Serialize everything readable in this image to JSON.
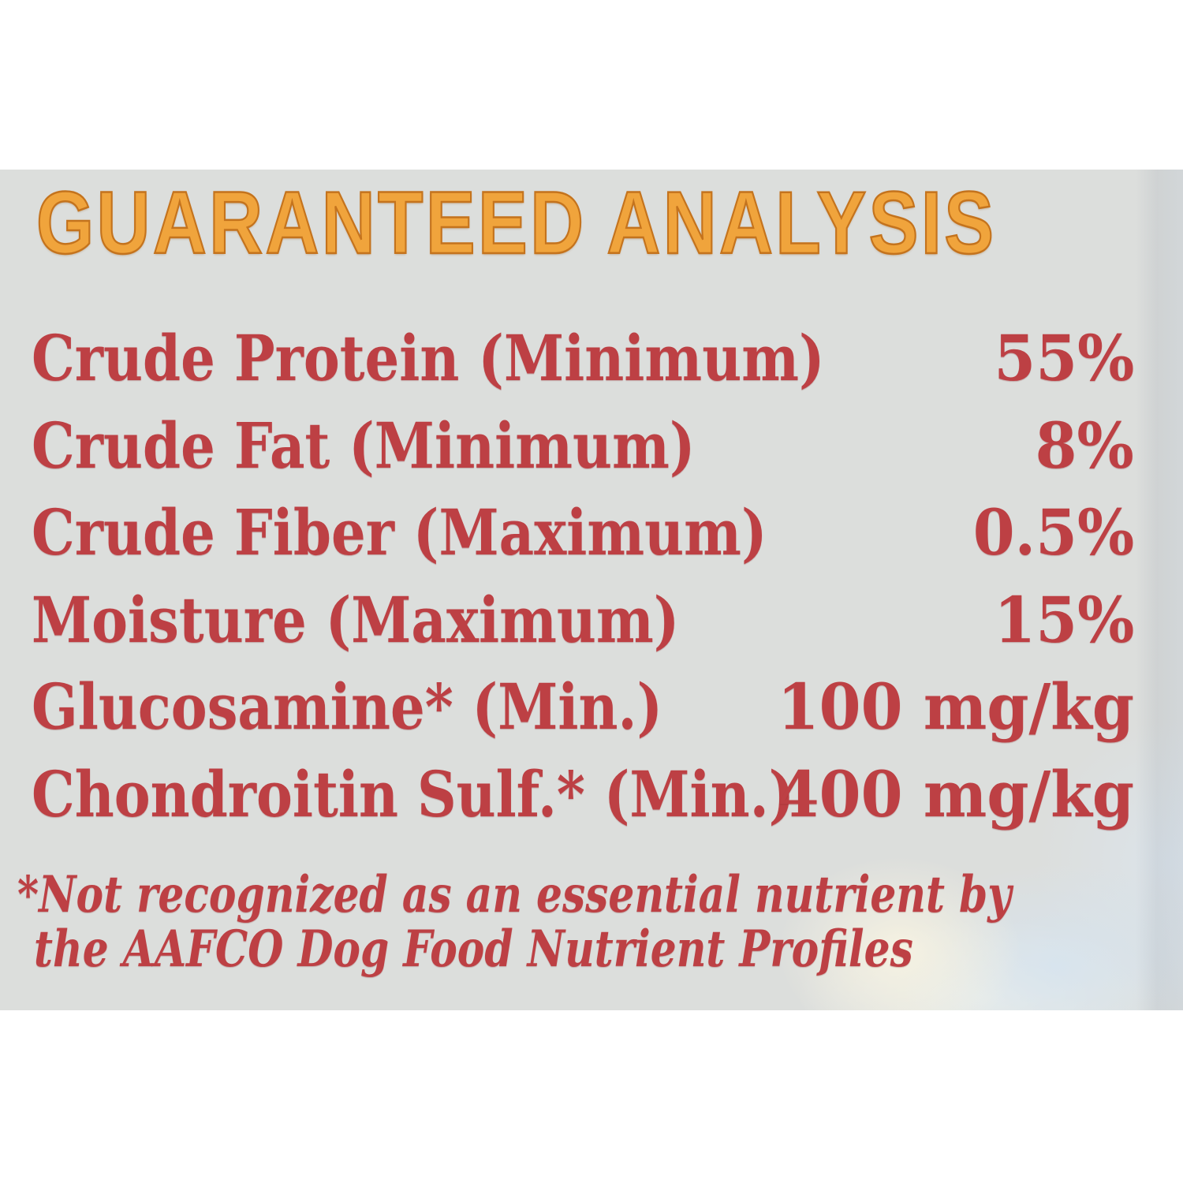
{
  "colors": {
    "page-bg": "#ffffff",
    "label-bg": "#dcdedc",
    "text-red": "#bd4044",
    "title-orange": "#f0a43c",
    "title-orange-edge": "#c4731d"
  },
  "label": {
    "title": "GUARANTEED ANALYSIS",
    "rows": [
      {
        "name": "Crude Protein (Minimum)",
        "value": "55%"
      },
      {
        "name": "Crude Fat (Minimum)",
        "value": "8%"
      },
      {
        "name": "Crude Fiber (Maximum)",
        "value": "0.5%"
      },
      {
        "name": "Moisture (Maximum)",
        "value": "15%"
      },
      {
        "name": "Glucosamine* (Min.)",
        "value": "100 mg/kg"
      },
      {
        "name": "Chondroitin Sulf.* (Min.)",
        "value": "400 mg/kg"
      }
    ],
    "footnote": {
      "line1": "*Not recognized as an essential nutrient by",
      "line2": "the AAFCO Dog Food Nutrient Profiles"
    }
  }
}
